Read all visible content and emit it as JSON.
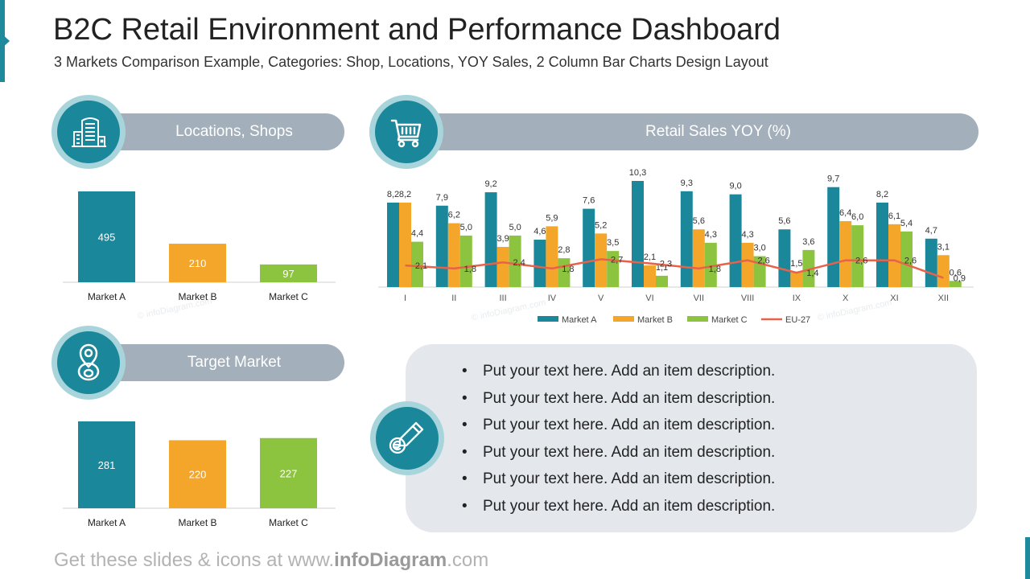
{
  "page": {
    "title": "B2C Retail Environment and Performance Dashboard",
    "subtitle": "3 Markets Comparison Example, Categories: Shop, Locations, YOY Sales, 2 Column Bar Charts Design Layout",
    "footer_prefix": "Get these slides & icons at www.",
    "footer_brand": "infoDiagram",
    "footer_suffix": ".com",
    "watermark": "© infoDiagram.com"
  },
  "colors": {
    "market_a": "#1a879a",
    "market_b": "#f4a62a",
    "market_c": "#8cc43f",
    "eu27": "#e8624a",
    "pill": "#a3afba"
  },
  "panels": {
    "locations": {
      "label": "Locations, Shops",
      "icon": "buildings-icon"
    },
    "target": {
      "label": "Target Market",
      "icon": "location-pin-icon"
    },
    "retail": {
      "label": "Retail Sales YOY (%)",
      "icon": "shopping-cart-icon"
    },
    "notes_icon": "euro-marker-icon"
  },
  "bullets": [
    "Put your text here. Add an item description.",
    "Put your text here. Add an item description.",
    "Put your text here. Add an item description.",
    "Put your text here. Add an item description.",
    "Put your text here. Add an item description.",
    "Put your text here. Add an item description."
  ],
  "chart_data": [
    {
      "type": "bar",
      "title": "Locations, Shops",
      "categories": [
        "Market A",
        "Market B",
        "Market C"
      ],
      "values": [
        495,
        210,
        97
      ],
      "value_labels": [
        "495",
        "210",
        "97"
      ],
      "colors": [
        "#1a879a",
        "#f4a62a",
        "#8cc43f"
      ],
      "ylim": [
        0,
        495
      ]
    },
    {
      "type": "bar",
      "title": "Target Market",
      "categories": [
        "Market A",
        "Market B",
        "Market C"
      ],
      "values": [
        281,
        220,
        227
      ],
      "value_labels": [
        "281",
        "220",
        "227"
      ],
      "colors": [
        "#1a879a",
        "#f4a62a",
        "#8cc43f"
      ],
      "ylim": [
        0,
        281
      ]
    },
    {
      "type": "bar",
      "title": "Retail Sales YOY (%)",
      "categories": [
        "I",
        "II",
        "III",
        "IV",
        "V",
        "VI",
        "VII",
        "VIII",
        "IX",
        "X",
        "XI",
        "XII"
      ],
      "series": [
        {
          "name": "Market A",
          "type": "bar",
          "color": "#1a879a",
          "values": [
            8.2,
            7.9,
            9.2,
            4.6,
            7.6,
            10.3,
            9.3,
            9.0,
            5.6,
            9.7,
            8.2,
            4.7
          ],
          "labels": [
            "8,2",
            "7,9",
            "9,2",
            "4,6",
            "7,6",
            "10,3",
            "9,3",
            "9,0",
            "5,6",
            "9,7",
            "8,2",
            "4,7"
          ]
        },
        {
          "name": "Market B",
          "type": "bar",
          "color": "#f4a62a",
          "values": [
            8.2,
            6.2,
            3.9,
            5.9,
            5.2,
            2.1,
            5.6,
            4.3,
            1.5,
            6.4,
            6.1,
            3.1
          ],
          "labels": [
            "8,2",
            "6,2",
            "3,9",
            "5,9",
            "5,2",
            "2,1",
            "5,6",
            "4,3",
            "1,5",
            "6,4",
            "6,1",
            "3,1"
          ]
        },
        {
          "name": "Market C",
          "type": "bar",
          "color": "#8cc43f",
          "values": [
            4.4,
            5.0,
            5.0,
            2.8,
            3.5,
            1.1,
            4.3,
            3.0,
            3.6,
            6.0,
            5.4,
            0.6
          ],
          "labels": [
            "4,4",
            "5,0",
            "5,0",
            "2,8",
            "3,5",
            "1,1",
            "4,3",
            "3,0",
            "3,6",
            "6,0",
            "5,4",
            "0,6"
          ]
        },
        {
          "name": "EU-27",
          "type": "line",
          "color": "#e8624a",
          "values": [
            2.1,
            1.8,
            2.4,
            1.8,
            2.7,
            2.3,
            1.8,
            2.6,
            1.4,
            2.6,
            2.6,
            0.9
          ],
          "labels": [
            "2,1",
            "1,8",
            "2,4",
            "1,8",
            "2,7",
            "2,3",
            "1,8",
            "2,6",
            "1,4",
            "2,6",
            "2,6",
            "0,9"
          ]
        }
      ],
      "ylim": [
        0,
        10.3
      ],
      "legend": "bottom"
    }
  ]
}
